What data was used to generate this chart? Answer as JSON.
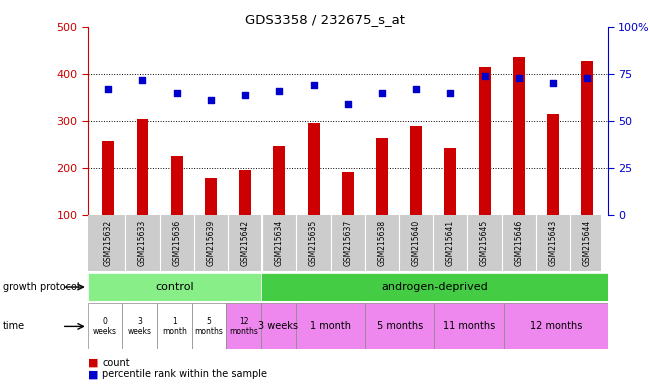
{
  "title": "GDS3358 / 232675_s_at",
  "samples": [
    "GSM215632",
    "GSM215633",
    "GSM215636",
    "GSM215639",
    "GSM215642",
    "GSM215634",
    "GSM215635",
    "GSM215637",
    "GSM215638",
    "GSM215640",
    "GSM215641",
    "GSM215645",
    "GSM215646",
    "GSM215643",
    "GSM215644"
  ],
  "counts": [
    258,
    305,
    225,
    178,
    195,
    247,
    295,
    192,
    263,
    290,
    243,
    415,
    435,
    315,
    428
  ],
  "percentiles": [
    67,
    72,
    65,
    61,
    64,
    66,
    69,
    59,
    65,
    67,
    65,
    74,
    73,
    70,
    73
  ],
  "ylim_left": [
    100,
    500
  ],
  "ylim_right": [
    0,
    100
  ],
  "yticks_left": [
    100,
    200,
    300,
    400,
    500
  ],
  "yticks_right": [
    0,
    25,
    50,
    75,
    100
  ],
  "bar_color": "#cc0000",
  "square_color": "#0000cc",
  "control_color": "#88ee88",
  "androgen_color": "#44cc44",
  "time_white": "#ffffff",
  "time_pink": "#ee88ee",
  "time_pink_dark": "#dd66dd",
  "xlabel_bg": "#cccccc",
  "control_samples_count": 5,
  "control_label": "control",
  "androgen_label": "androgen-deprived",
  "time_control_labels": [
    "0\nweeks",
    "3\nweeks",
    "1\nmonth",
    "5\nmonths",
    "12\nmonths"
  ],
  "time_control_colors": [
    "#ffffff",
    "#ffffff",
    "#ffffff",
    "#ffffff",
    "#ee88ee"
  ],
  "time_androgen_labels": [
    "3 weeks",
    "1 month",
    "5 months",
    "11 months",
    "12 months"
  ],
  "time_androgen_widths": [
    1,
    2,
    2,
    2,
    3
  ],
  "time_androgen_color": "#ee88ee",
  "legend_count_label": "count",
  "legend_pct_label": "percentile rank within the sample",
  "growth_protocol_label": "growth protocol",
  "time_label": "time"
}
